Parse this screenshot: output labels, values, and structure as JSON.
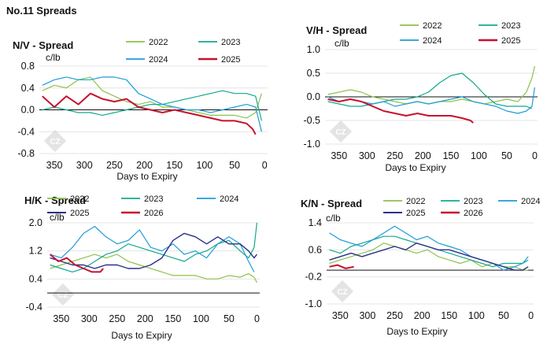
{
  "page_title": "No.11 Spreads",
  "watermark": "CZ",
  "colors": {
    "2022": "#8bc34a",
    "2023": "#14a88e",
    "2024": "#1e9cd7",
    "2025": "#2b2f8a",
    "2026": "#c8102e",
    "2025_nv_vh": "#c8102e"
  },
  "chart_data": [
    {
      "type": "line",
      "title": "N/V - Spread",
      "unit": "c/lb",
      "xlabel": "Days to Expiry",
      "x_ticks": [
        350,
        300,
        250,
        200,
        150,
        100,
        50,
        0
      ],
      "y_ticks": [
        0.8,
        0.4,
        0.0,
        -0.4,
        -0.8
      ],
      "x_tick_labels": [
        "350",
        "300",
        "250",
        "200",
        "150",
        "100",
        "50",
        "0"
      ],
      "y_tick_labels": [
        "0.8",
        "0.4",
        "0.0",
        "-0.4",
        "-0.8"
      ],
      "xlim": [
        375,
        -5
      ],
      "ylim": [
        -0.8,
        0.8
      ],
      "zero_line": 0,
      "legend": [
        "2022",
        "2023",
        "2024",
        "2025"
      ],
      "series": [
        {
          "name": "2022",
          "color": "#8bc34a",
          "width": 1.2,
          "x": [
            370,
            350,
            330,
            310,
            290,
            270,
            250,
            230,
            210,
            190,
            170,
            150,
            130,
            110,
            90,
            70,
            50,
            30,
            15,
            5
          ],
          "values": [
            0.35,
            0.45,
            0.4,
            0.55,
            0.6,
            0.35,
            0.25,
            0.15,
            0.1,
            0.15,
            0.05,
            0.05,
            0.0,
            -0.05,
            -0.1,
            -0.1,
            -0.1,
            -0.15,
            -0.05,
            0.3
          ]
        },
        {
          "name": "2023",
          "color": "#14a88e",
          "width": 1.2,
          "x": [
            370,
            350,
            330,
            310,
            290,
            270,
            250,
            230,
            210,
            190,
            170,
            150,
            130,
            110,
            90,
            70,
            50,
            30,
            15,
            5
          ],
          "values": [
            0.0,
            0.05,
            0.0,
            -0.05,
            -0.05,
            -0.1,
            -0.05,
            0.0,
            0.05,
            0.1,
            0.1,
            0.15,
            0.2,
            0.25,
            0.3,
            0.35,
            0.3,
            0.3,
            0.25,
            -0.2
          ]
        },
        {
          "name": "2024",
          "color": "#1e9cd7",
          "width": 1.2,
          "x": [
            370,
            350,
            330,
            310,
            290,
            270,
            250,
            230,
            210,
            190,
            170,
            150,
            130,
            110,
            90,
            70,
            50,
            30,
            15,
            5
          ],
          "values": [
            0.45,
            0.55,
            0.6,
            0.55,
            0.55,
            0.6,
            0.6,
            0.55,
            0.3,
            0.2,
            0.1,
            0.05,
            0.0,
            0.0,
            -0.05,
            0.0,
            0.05,
            0.1,
            0.05,
            -0.4
          ]
        },
        {
          "name": "2025",
          "color": "#c8102e",
          "width": 2,
          "x": [
            370,
            350,
            330,
            310,
            290,
            270,
            250,
            230,
            210,
            190,
            170,
            150,
            130,
            110,
            90,
            70,
            50,
            30,
            20,
            15
          ],
          "values": [
            0.25,
            0.05,
            0.25,
            0.1,
            0.3,
            0.2,
            0.15,
            0.2,
            0.05,
            0.0,
            -0.05,
            0.0,
            -0.05,
            -0.1,
            -0.15,
            -0.2,
            -0.2,
            -0.25,
            -0.35,
            -0.45
          ]
        }
      ]
    },
    {
      "type": "line",
      "title": "V/H - Spread",
      "unit": "c/lb",
      "xlabel": "Days to Expiry",
      "x_ticks": [
        350,
        300,
        250,
        200,
        150,
        100,
        50,
        0
      ],
      "y_ticks": [
        1.0,
        0.5,
        0.0,
        -0.5,
        -1.0
      ],
      "x_tick_labels": [
        "350",
        "300",
        "250",
        "200",
        "150",
        "100",
        "50",
        "0"
      ],
      "y_tick_labels": [
        "1.0",
        "0.5",
        "0.0",
        "-0.5",
        "-1.0"
      ],
      "xlim": [
        375,
        -5
      ],
      "ylim": [
        -1.0,
        1.0
      ],
      "zero_line": 0,
      "legend": [
        "2022",
        "2023",
        "2024",
        "2025"
      ],
      "series": [
        {
          "name": "2022",
          "color": "#8bc34a",
          "width": 1.2,
          "x": [
            370,
            350,
            330,
            310,
            290,
            270,
            250,
            230,
            210,
            190,
            170,
            150,
            130,
            110,
            90,
            70,
            50,
            30,
            15,
            5,
            0
          ],
          "values": [
            0.05,
            0.1,
            0.15,
            0.1,
            0.0,
            -0.05,
            -0.1,
            -0.15,
            -0.1,
            -0.15,
            -0.1,
            -0.1,
            -0.05,
            -0.1,
            -0.15,
            -0.1,
            -0.05,
            -0.1,
            0.1,
            0.4,
            0.65
          ]
        },
        {
          "name": "2023",
          "color": "#14a88e",
          "width": 1.2,
          "x": [
            370,
            350,
            330,
            310,
            290,
            270,
            250,
            230,
            210,
            190,
            170,
            150,
            130,
            110,
            90,
            70,
            50,
            30,
            15,
            5
          ],
          "values": [
            -0.1,
            -0.15,
            -0.2,
            -0.2,
            -0.15,
            -0.1,
            -0.05,
            -0.05,
            0.0,
            0.1,
            0.3,
            0.45,
            0.5,
            0.3,
            0.05,
            -0.15,
            -0.2,
            -0.2,
            -0.2,
            -0.25
          ]
        },
        {
          "name": "2024",
          "color": "#1e9cd7",
          "width": 1.2,
          "x": [
            370,
            350,
            330,
            310,
            290,
            270,
            250,
            230,
            210,
            190,
            170,
            150,
            130,
            110,
            90,
            70,
            50,
            30,
            15,
            5,
            0
          ],
          "values": [
            0.0,
            -0.1,
            -0.05,
            -0.1,
            -0.15,
            -0.1,
            -0.2,
            -0.15,
            -0.1,
            -0.15,
            -0.1,
            -0.05,
            0.0,
            -0.1,
            -0.15,
            -0.2,
            -0.3,
            -0.35,
            -0.3,
            -0.2,
            0.2
          ]
        },
        {
          "name": "2025",
          "color": "#c8102e",
          "width": 2,
          "x": [
            370,
            350,
            330,
            310,
            290,
            270,
            250,
            230,
            210,
            190,
            170,
            150,
            130,
            115,
            110
          ],
          "values": [
            -0.05,
            -0.1,
            -0.05,
            -0.1,
            -0.2,
            -0.3,
            -0.35,
            -0.4,
            -0.35,
            -0.4,
            -0.4,
            -0.4,
            -0.45,
            -0.5,
            -0.55
          ]
        }
      ]
    },
    {
      "type": "line",
      "title": "H/K - Spread",
      "unit": "c/lb",
      "xlabel": "Days to Expiry",
      "x_ticks": [
        350,
        300,
        250,
        200,
        150,
        100,
        50,
        0
      ],
      "y_ticks": [
        2.0,
        1.2,
        0.4,
        -0.4
      ],
      "x_tick_labels": [
        "350",
        "300",
        "250",
        "200",
        "150",
        "100",
        "50",
        "0"
      ],
      "y_tick_labels": [
        "2.0",
        "1.2",
        "0.4",
        "-0.4"
      ],
      "xlim": [
        375,
        -5
      ],
      "ylim": [
        -0.4,
        2.0
      ],
      "zero_line": 0,
      "legend": [
        "2022",
        "2023",
        "2024",
        "2025",
        "2026"
      ],
      "series": [
        {
          "name": "2022",
          "color": "#8bc34a",
          "width": 1.2,
          "x": [
            370,
            350,
            330,
            310,
            290,
            270,
            250,
            230,
            210,
            190,
            170,
            150,
            130,
            110,
            90,
            70,
            50,
            30,
            15,
            5,
            0
          ],
          "values": [
            0.7,
            0.8,
            0.9,
            1.0,
            1.1,
            1.0,
            1.1,
            0.9,
            0.8,
            0.7,
            0.6,
            0.5,
            0.5,
            0.5,
            0.4,
            0.4,
            0.5,
            0.45,
            0.55,
            0.45,
            0.3
          ]
        },
        {
          "name": "2023",
          "color": "#14a88e",
          "width": 1.2,
          "x": [
            370,
            350,
            330,
            310,
            290,
            270,
            250,
            230,
            210,
            190,
            170,
            150,
            130,
            110,
            90,
            70,
            50,
            30,
            15,
            5,
            0
          ],
          "values": [
            0.8,
            0.7,
            0.6,
            0.7,
            0.9,
            1.1,
            1.2,
            1.4,
            1.3,
            1.2,
            1.1,
            1.0,
            0.9,
            1.1,
            1.2,
            1.4,
            1.5,
            1.2,
            1.0,
            1.3,
            2.0
          ]
        },
        {
          "name": "2024",
          "color": "#1e9cd7",
          "width": 1.2,
          "x": [
            370,
            350,
            330,
            310,
            290,
            270,
            250,
            230,
            210,
            190,
            170,
            150,
            130,
            110,
            90,
            70,
            50,
            30,
            15,
            5
          ],
          "values": [
            1.1,
            1.0,
            1.3,
            1.7,
            1.9,
            1.6,
            1.4,
            1.5,
            1.8,
            1.3,
            1.2,
            1.4,
            1.1,
            1.2,
            1.0,
            1.4,
            1.6,
            1.4,
            0.9,
            0.6
          ]
        },
        {
          "name": "2025",
          "color": "#2b2f8a",
          "width": 1.4,
          "x": [
            370,
            350,
            330,
            310,
            290,
            270,
            250,
            230,
            210,
            190,
            170,
            150,
            130,
            110,
            90,
            70,
            50,
            30,
            15,
            5,
            0
          ],
          "values": [
            1.0,
            0.9,
            0.8,
            0.8,
            0.7,
            0.8,
            0.8,
            0.7,
            0.7,
            0.8,
            1.0,
            1.5,
            1.7,
            1.6,
            1.4,
            1.6,
            1.4,
            1.4,
            1.2,
            1.0,
            1.1
          ]
        },
        {
          "name": "2026",
          "color": "#c8102e",
          "width": 2,
          "x": [
            370,
            355,
            340,
            325,
            310,
            295,
            280,
            275
          ],
          "values": [
            1.1,
            0.9,
            1.0,
            0.8,
            0.7,
            0.6,
            0.6,
            0.7
          ]
        }
      ]
    },
    {
      "type": "line",
      "title": "K/N - Spread",
      "unit": "c/lb",
      "xlabel": "Days to Expiry",
      "x_ticks": [
        350,
        300,
        250,
        200,
        150,
        100,
        50,
        0
      ],
      "y_ticks": [
        1.4,
        0.6,
        -0.2,
        -1.0
      ],
      "x_tick_labels": [
        "350",
        "300",
        "250",
        "200",
        "150",
        "100",
        "50",
        "0"
      ],
      "y_tick_labels": [
        "1.4",
        "0.6",
        "-0.2",
        "-1.0"
      ],
      "xlim": [
        375,
        -5
      ],
      "ylim": [
        -1.0,
        1.4
      ],
      "zero_line": 0,
      "legend": [
        "2022",
        "2023",
        "2024",
        "2025",
        "2026"
      ],
      "series": [
        {
          "name": "2022",
          "color": "#8bc34a",
          "width": 1.2,
          "x": [
            370,
            350,
            330,
            310,
            290,
            270,
            250,
            230,
            210,
            190,
            170,
            150,
            130,
            110,
            90,
            70,
            50,
            30,
            15,
            5
          ],
          "values": [
            0.2,
            0.3,
            0.4,
            0.5,
            0.6,
            0.8,
            0.7,
            0.6,
            0.5,
            0.6,
            0.4,
            0.3,
            0.2,
            0.3,
            0.1,
            0.2,
            0.1,
            0.1,
            0.0,
            0.0
          ]
        },
        {
          "name": "2023",
          "color": "#14a88e",
          "width": 1.2,
          "x": [
            370,
            350,
            330,
            310,
            290,
            270,
            250,
            230,
            210,
            190,
            170,
            150,
            130,
            110,
            90,
            70,
            50,
            30,
            15,
            5
          ],
          "values": [
            0.6,
            0.5,
            0.7,
            0.8,
            0.9,
            1.0,
            1.0,
            0.9,
            0.8,
            0.7,
            0.6,
            0.5,
            0.4,
            0.3,
            0.2,
            0.1,
            0.2,
            0.2,
            0.2,
            0.3
          ]
        },
        {
          "name": "2024",
          "color": "#1e9cd7",
          "width": 1.2,
          "x": [
            370,
            350,
            330,
            310,
            290,
            270,
            250,
            230,
            210,
            190,
            170,
            150,
            130,
            110,
            90,
            70,
            50,
            30,
            15,
            5
          ],
          "values": [
            1.1,
            0.9,
            0.8,
            0.7,
            0.9,
            1.1,
            1.3,
            1.1,
            0.9,
            1.0,
            0.8,
            0.7,
            0.6,
            0.4,
            0.3,
            0.2,
            0.0,
            0.1,
            0.2,
            0.4
          ]
        },
        {
          "name": "2025",
          "color": "#2b2f8a",
          "width": 1.4,
          "x": [
            370,
            350,
            330,
            310,
            290,
            270,
            250,
            230,
            210,
            190,
            170,
            150,
            130,
            110,
            90,
            70,
            50,
            30,
            15,
            5
          ],
          "values": [
            0.3,
            0.4,
            0.5,
            0.4,
            0.5,
            0.6,
            0.7,
            0.6,
            0.8,
            0.7,
            0.6,
            0.6,
            0.5,
            0.4,
            0.3,
            0.2,
            0.1,
            0.0,
            0.0,
            0.1
          ]
        },
        {
          "name": "2026",
          "color": "#c8102e",
          "width": 2,
          "x": [
            370,
            355,
            340,
            325
          ],
          "values": [
            0.1,
            0.15,
            0.05,
            0.1
          ]
        }
      ]
    }
  ]
}
